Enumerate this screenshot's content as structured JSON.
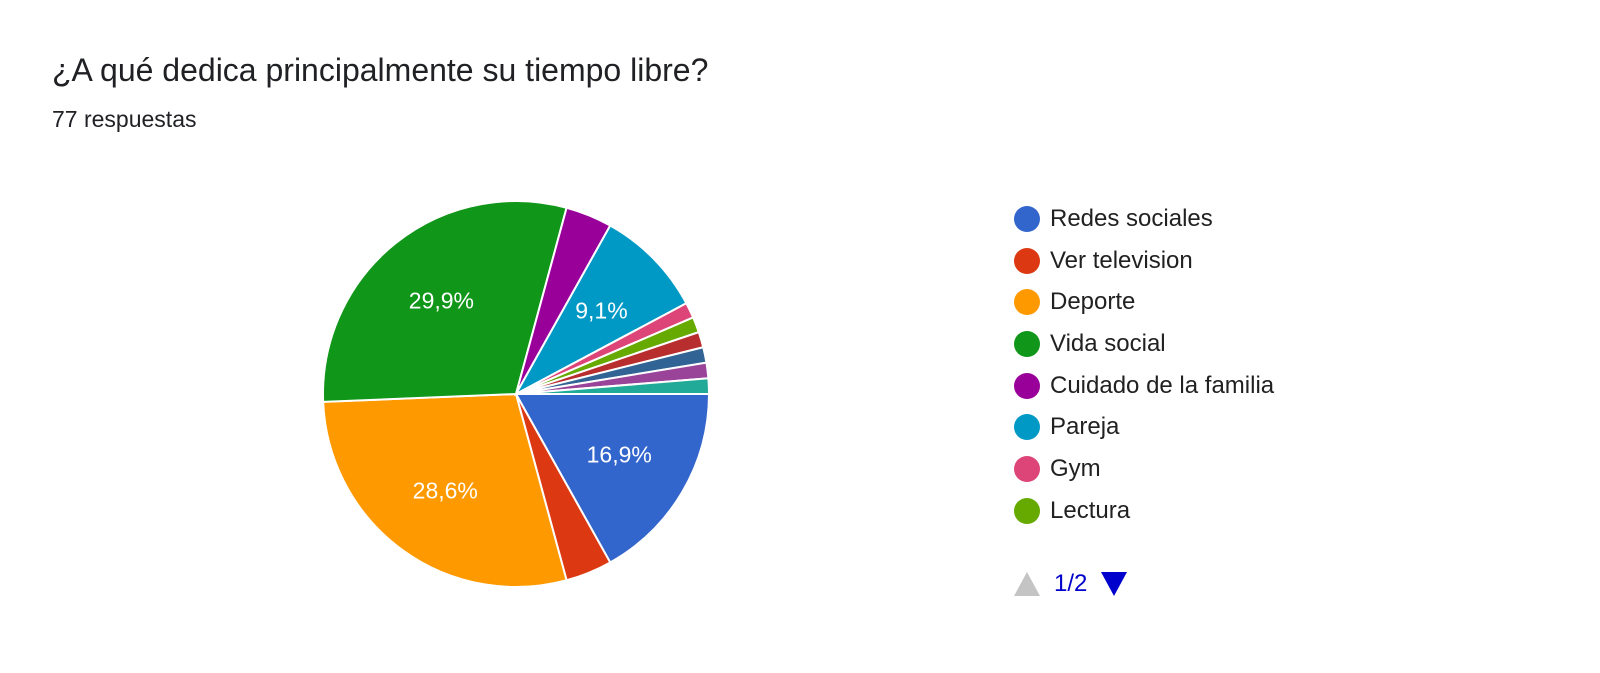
{
  "header": {
    "title": "¿A qué dedica principalmente su tiempo libre?",
    "subtitle": "77 respuestas"
  },
  "chart_data": {
    "type": "pie",
    "total": 77,
    "slices": [
      {
        "name": "Redes sociales",
        "value": 16.9,
        "label": "16,9%",
        "color": "#3366cc"
      },
      {
        "name": "Ver television",
        "value": 3.9,
        "label": "",
        "color": "#dc3912"
      },
      {
        "name": "Deporte",
        "value": 28.6,
        "label": "28,6%",
        "color": "#ff9900"
      },
      {
        "name": "Vida social",
        "value": 29.9,
        "label": "29,9%",
        "color": "#109618"
      },
      {
        "name": "Cuidado de la familia",
        "value": 3.9,
        "label": "",
        "color": "#990099"
      },
      {
        "name": "Pareja",
        "value": 9.1,
        "label": "9,1%",
        "color": "#0099c6"
      },
      {
        "name": "Gym",
        "value": 1.3,
        "label": "",
        "color": "#dd4477"
      },
      {
        "name": "Lectura",
        "value": 1.3,
        "label": "",
        "color": "#66aa00"
      },
      {
        "name": "",
        "value": 1.3,
        "label": "",
        "color": "#b82e2e"
      },
      {
        "name": "",
        "value": 1.3,
        "label": "",
        "color": "#316395"
      },
      {
        "name": "",
        "value": 1.3,
        "label": "",
        "color": "#994499"
      },
      {
        "name": "",
        "value": 1.3,
        "label": "",
        "color": "#22aa99"
      }
    ],
    "legend_position": "right",
    "legend_page": "1/2"
  },
  "legend": {
    "items": [
      {
        "name": "Redes sociales",
        "color": "#3366cc"
      },
      {
        "name": "Ver television",
        "color": "#dc3912"
      },
      {
        "name": "Deporte",
        "color": "#ff9900"
      },
      {
        "name": "Vida social",
        "color": "#109618"
      },
      {
        "name": "Cuidado de la familia",
        "color": "#990099"
      },
      {
        "name": "Pareja",
        "color": "#0099c6"
      },
      {
        "name": "Gym",
        "color": "#dd4477"
      },
      {
        "name": "Lectura",
        "color": "#66aa00"
      }
    ]
  },
  "pager": {
    "text": "1/2",
    "prev_icon": "triangle-up-icon",
    "next_icon": "triangle-down-icon",
    "active_color": "#0000cc",
    "disabled_color": "#c4c4c4"
  }
}
